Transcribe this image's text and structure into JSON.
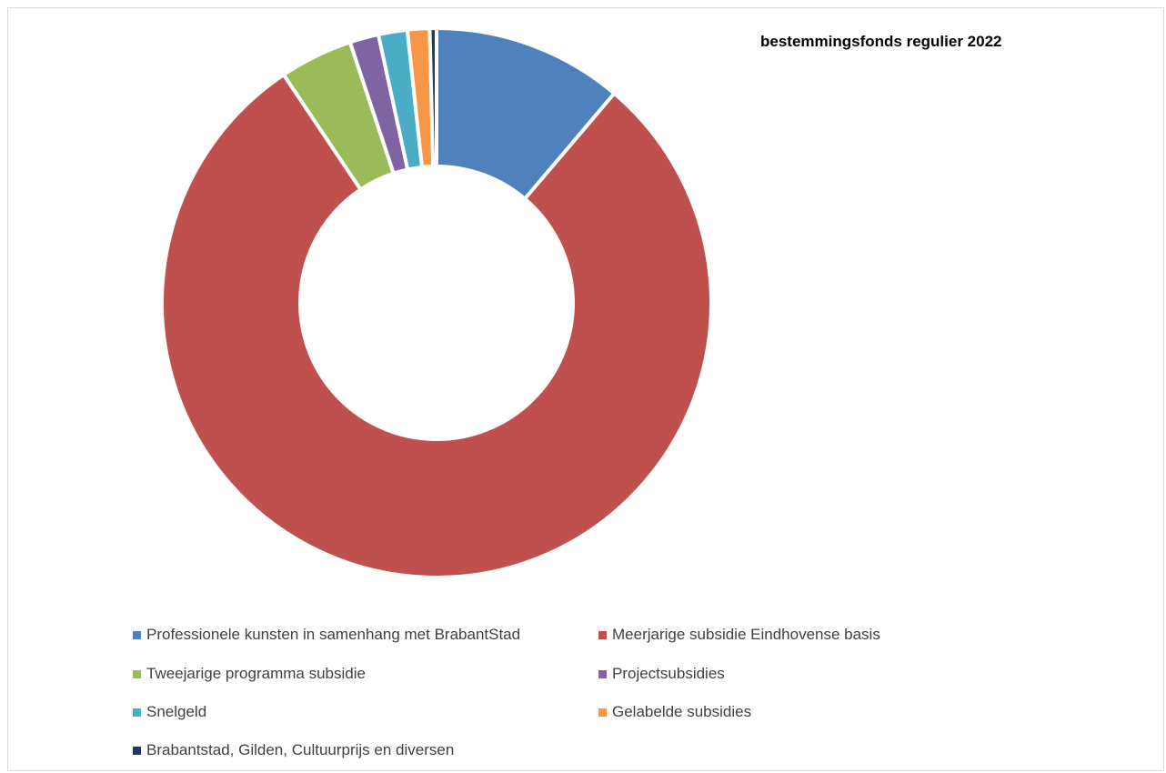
{
  "chart_data": {
    "type": "pie",
    "style": "donut",
    "title": "bestemmingsfonds regulier 2022",
    "legend_position": "bottom",
    "series": [
      {
        "name": "Professionele kunsten in samenhang met BrabantStad",
        "value": 11.2,
        "color": "#4F81BD"
      },
      {
        "name": "Meerjarige subsidie Eindhovense basis",
        "value": 79.4,
        "color": "#C0504D"
      },
      {
        "name": "Tweejarige programma subsidie",
        "value": 4.3,
        "color": "#9BBB59"
      },
      {
        "name": "Projectsubsidies",
        "value": 1.7,
        "color": "#8064A2"
      },
      {
        "name": "Snelgeld",
        "value": 1.7,
        "color": "#4BACC6"
      },
      {
        "name": "Gelabelde subsidies",
        "value": 1.3,
        "color": "#F79646"
      },
      {
        "name": "Brabantstad, Gilden, Cultuurprijs en diversen",
        "value": 0.4,
        "color": "#1F3864"
      }
    ]
  }
}
